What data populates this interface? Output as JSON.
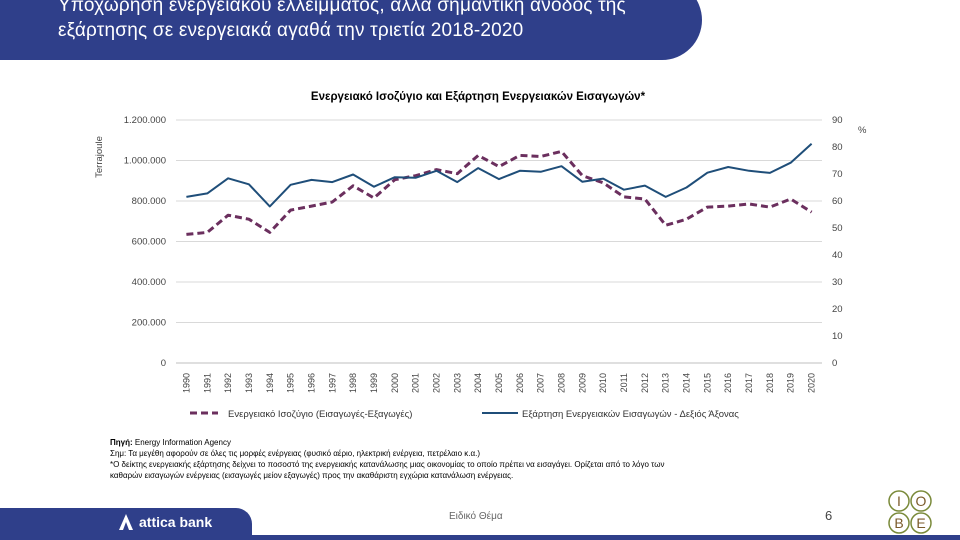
{
  "header": {
    "title_line1": "Υποχώρηση ενεργειακού ελλείμματος, αλλά σημαντική άνοδος της",
    "title_line2": "εξάρτησης σε ενεργειακά αγαθά την τριετία 2018-2020"
  },
  "chart_data": {
    "type": "line",
    "title": "Ενεργειακό Ισοζύγιο και Εξάρτηση Ενεργειακών Εισαγωγών*",
    "ylabel_left": "Terrajoule",
    "ylabel_right": "%",
    "ylim_left": [
      0,
      1200000
    ],
    "ylim_right": [
      0,
      90
    ],
    "left_ticks": [
      "0",
      "200.000",
      "400.000",
      "600.000",
      "800.000",
      "1.000.000",
      "1.200.000"
    ],
    "right_ticks": [
      "0",
      "10",
      "20",
      "30",
      "40",
      "50",
      "60",
      "70",
      "80",
      "90"
    ],
    "categories": [
      "1990",
      "1991",
      "1992",
      "1993",
      "1994",
      "1995",
      "1996",
      "1997",
      "1998",
      "1999",
      "2000",
      "2001",
      "2002",
      "2003",
      "2004",
      "2005",
      "2006",
      "2007",
      "2008",
      "2009",
      "2010",
      "2011",
      "2012",
      "2013",
      "2014",
      "2015",
      "2016",
      "2017",
      "2018",
      "2019",
      "2020"
    ],
    "series": [
      {
        "name": "Ενεργειακό  Ισοζύγιο (Εισαγωγές-Εξαγωγές)",
        "axis": "left",
        "style": "dashed",
        "color": "#6b2f5e",
        "values": [
          635000,
          645000,
          730000,
          710000,
          645000,
          755000,
          775000,
          795000,
          875000,
          815000,
          905000,
          925000,
          955000,
          935000,
          1025000,
          970000,
          1025000,
          1020000,
          1045000,
          925000,
          890000,
          820000,
          810000,
          680000,
          710000,
          770000,
          775000,
          785000,
          770000,
          810000,
          745000
        ]
      },
      {
        "name": "Εξάρτηση Ενεργειακών  Εισαγωγών  - Δεξιός Άξονας",
        "axis": "right",
        "style": "solid",
        "color": "#1f4e79",
        "values": [
          61.5,
          62.8,
          68.4,
          66.2,
          58.0,
          66.0,
          67.8,
          67.0,
          69.8,
          65.3,
          68.8,
          68.6,
          71.2,
          67.0,
          72.2,
          68.1,
          71.2,
          70.8,
          72.9,
          67.1,
          68.3,
          64.2,
          65.7,
          61.5,
          65.0,
          70.5,
          72.6,
          71.2,
          70.4,
          74.2,
          81.2
        ]
      }
    ],
    "grid": true,
    "legend": "bottom"
  },
  "notes": {
    "source_label": "Πηγή:",
    "source_text": " Energy Information Agency",
    "note1": "Σημ: Τα μεγέθη αφορούν σε όλες τις μορφές ενέργειας (φυσικό αέριο, ηλεκτρική ενέργεια, πετρέλαιο κ.α.)",
    "note2": "*Ο δείκτης ενεργειακής εξάρτησης δείχνει το ποσοστό της ενεργειακής κατανάλωσης μιας οικονομίας το οποίο πρέπει να εισαγάγει. Ορίζεται από το λόγο των",
    "note3": "καθαρών εισαγωγών ενέργειας (εισαγωγές μείον εξαγωγές) προς την ακαθάριστη εγχώρια κατανάλωση ενέργειας."
  },
  "footer": {
    "brand": "attica bank",
    "center_text": "Ειδικό Θέμα",
    "page_number": "6",
    "iobe_letters": [
      "I",
      "O",
      "B",
      "E"
    ]
  },
  "colors": {
    "brand_blue": "#2f3f8a",
    "balance_series": "#6b2f5e",
    "dependence_series": "#1f4e79"
  }
}
